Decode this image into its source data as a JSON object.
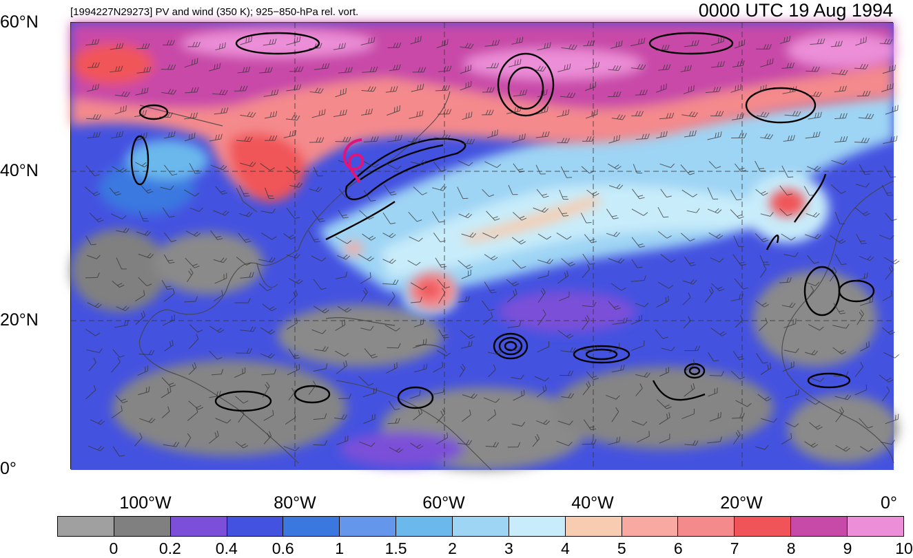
{
  "header": {
    "subtitle": "[1994227N29273] PV and wind (350 K); 925−850-hPa rel. vort.",
    "time": "0000 UTC 19 Aug 1994"
  },
  "axes": {
    "lat_labels": [
      "60°N",
      "40°N",
      "20°N",
      "0°"
    ],
    "lon_labels": [
      "100°W",
      "80°W",
      "60°W",
      "40°W",
      "20°W",
      "0°"
    ]
  },
  "colorbar": {
    "colors": [
      "#a0a0a0",
      "#808080",
      "#7b4fd8",
      "#4452e0",
      "#3a78e0",
      "#6496ec",
      "#6ab8ec",
      "#9ed4f4",
      "#c8ecfa",
      "#f8ccb0",
      "#f8aaa2",
      "#f48a8c",
      "#f05458",
      "#c84aa8",
      "#ec8ed8"
    ],
    "labels": [
      "0",
      "0.2",
      "0.4",
      "0.6",
      "1",
      "1.5",
      "2",
      "3",
      "4",
      "5",
      "6",
      "7",
      "8",
      "9",
      "10"
    ]
  },
  "storm": {
    "symbol": "tropical-storm-symbol",
    "color": "#e0157a"
  }
}
